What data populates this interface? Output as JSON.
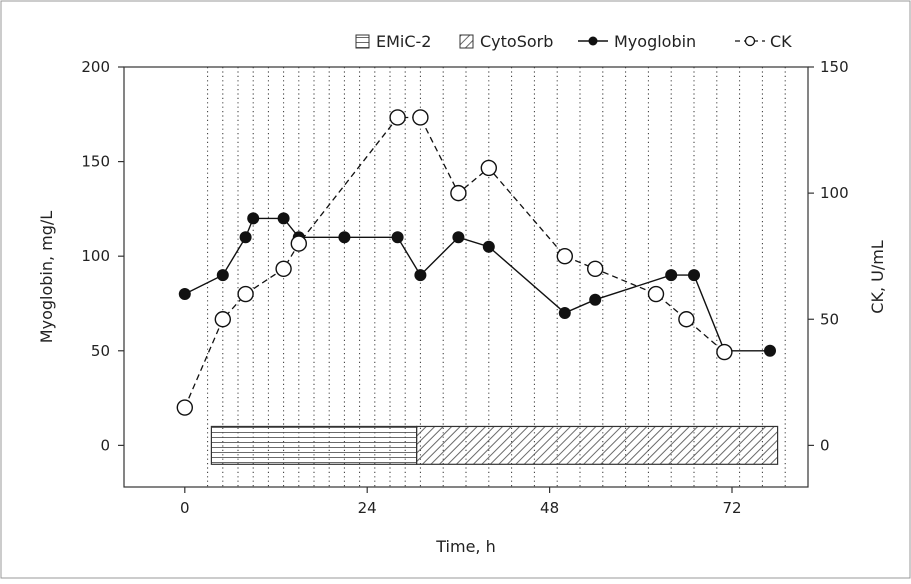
{
  "chart_data": {
    "type": "line",
    "xlabel": "Time, h",
    "ylabel_left": "Myoglobin, mg/L",
    "ylabel_right": "CK, U/mL",
    "x_ticks": [
      0,
      24,
      48,
      72
    ],
    "x_range": [
      -8,
      82
    ],
    "y_left_ticks": [
      0,
      50,
      100,
      150,
      200
    ],
    "y_left_range": [
      -22,
      200
    ],
    "y_right_ticks": [
      0,
      50,
      100,
      150
    ],
    "y_right_range": [
      -16.5,
      150
    ],
    "legend_position": "top-right",
    "grid": "vertical dotted lines",
    "vertical_gridlines_x": [
      3,
      5,
      7,
      9,
      11,
      13,
      15,
      17,
      19,
      21,
      23,
      25,
      27,
      29,
      31,
      34,
      37,
      40,
      43,
      46,
      49,
      52,
      55,
      58,
      61,
      64,
      67,
      70,
      73,
      76,
      79
    ],
    "series": [
      {
        "name": "Myoglobin",
        "axis": "left",
        "marker": "filled-circle",
        "line": "solid",
        "points": [
          {
            "x": 0,
            "y": 80
          },
          {
            "x": 5,
            "y": 90
          },
          {
            "x": 8,
            "y": 110
          },
          {
            "x": 9,
            "y": 120
          },
          {
            "x": 13,
            "y": 120
          },
          {
            "x": 15,
            "y": 110
          },
          {
            "x": 21,
            "y": 110
          },
          {
            "x": 28,
            "y": 110
          },
          {
            "x": 31,
            "y": 90
          },
          {
            "x": 36,
            "y": 110
          },
          {
            "x": 40,
            "y": 105
          },
          {
            "x": 50,
            "y": 70
          },
          {
            "x": 54,
            "y": 77
          },
          {
            "x": 64,
            "y": 90
          },
          {
            "x": 67,
            "y": 90
          },
          {
            "x": 71,
            "y": 50
          },
          {
            "x": 77,
            "y": 50
          }
        ]
      },
      {
        "name": "CK",
        "axis": "right",
        "marker": "open-circle",
        "line": "dashed",
        "points": [
          {
            "x": 0,
            "y": 15
          },
          {
            "x": 5,
            "y": 50
          },
          {
            "x": 8,
            "y": 60
          },
          {
            "x": 13,
            "y": 70
          },
          {
            "x": 15,
            "y": 80
          },
          {
            "x": 28,
            "y": 130
          },
          {
            "x": 31,
            "y": 130
          },
          {
            "x": 36,
            "y": 100
          },
          {
            "x": 40,
            "y": 110
          },
          {
            "x": 50,
            "y": 75
          },
          {
            "x": 54,
            "y": 70
          },
          {
            "x": 62,
            "y": 60
          },
          {
            "x": 66,
            "y": 50
          },
          {
            "x": 71,
            "y": 37
          }
        ]
      }
    ],
    "treatment_bars": [
      {
        "name": "EMiC-2",
        "pattern": "horizontal-lines",
        "x_start": 3.5,
        "x_end": 30.5
      },
      {
        "name": "CytoSorb",
        "pattern": "diagonal-lines",
        "x_start": 30.5,
        "x_end": 78
      }
    ],
    "legend": [
      "EMiC-2",
      "CytoSorb",
      "Myoglobin",
      "CK"
    ]
  }
}
